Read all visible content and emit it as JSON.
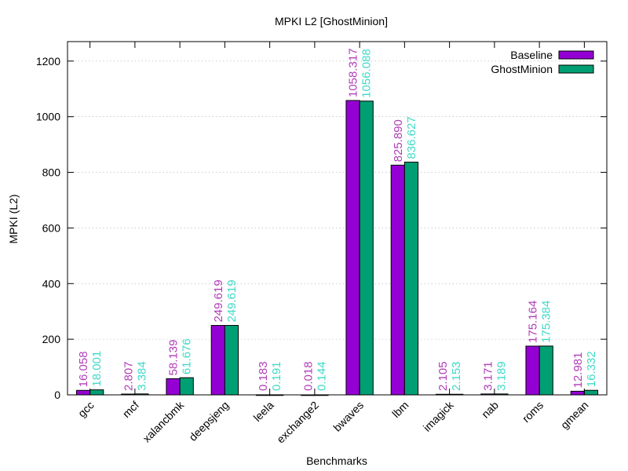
{
  "colors": {
    "baseline": "#9400d3",
    "ghostminion": "#009e73",
    "baseline_label": "#b03db8",
    "ghostminion_label": "#3fd9c7",
    "grid": "#b0b0b0"
  },
  "chart_data": {
    "type": "bar",
    "title": "MPKI L2 [GhostMinion]",
    "xlabel": "Benchmarks",
    "ylabel": "MPKI (L2)",
    "ylim": [
      0,
      1270
    ],
    "yticks": [
      0,
      200,
      400,
      600,
      800,
      1000,
      1200
    ],
    "grid": true,
    "legend_position": "top-right",
    "categories": [
      "gcc",
      "mcf",
      "xalancbmk",
      "deepsjeng",
      "leela",
      "exchange2",
      "bwaves",
      "lbm",
      "imagick",
      "nab",
      "roms",
      "gmean"
    ],
    "series": [
      {
        "name": "Baseline",
        "values": [
          16.058,
          2.807,
          58.139,
          249.619,
          0.183,
          0.018,
          1058.317,
          825.89,
          2.105,
          3.171,
          175.164,
          12.981
        ],
        "labels": [
          "16.058",
          "2.807",
          "58.139",
          "249.619",
          "0.183",
          "0.018",
          "1058.317",
          "825.890",
          "2.105",
          "3.171",
          "175.164",
          "12.981"
        ]
      },
      {
        "name": "GhostMinion",
        "values": [
          18.001,
          3.384,
          61.676,
          249.619,
          0.191,
          0.144,
          1056.088,
          836.627,
          2.153,
          3.189,
          175.384,
          16.332
        ],
        "labels": [
          "18.001",
          "3.384",
          "61.676",
          "249.619",
          "0.191",
          "0.144",
          "1056.088",
          "836.627",
          "2.153",
          "3.189",
          "175.384",
          "16.332"
        ]
      }
    ]
  }
}
